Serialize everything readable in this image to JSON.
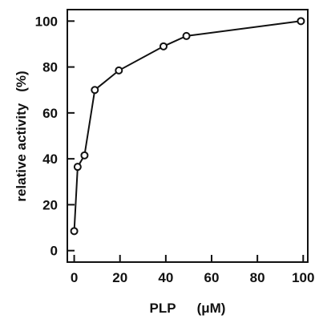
{
  "chart_data": {
    "type": "line",
    "xlabel": "PLP",
    "xunit": "(μM)",
    "ylabel": "relative activity",
    "yunit": "(%)",
    "xlim": [
      -3,
      102
    ],
    "ylim": [
      -5,
      105
    ],
    "xticks": [
      0,
      20,
      40,
      60,
      80,
      100
    ],
    "yticks": [
      0,
      20,
      40,
      60,
      80,
      100
    ],
    "grid": false,
    "markers": "open-circle",
    "series": [
      {
        "x": [
          0,
          1.5,
          4.5,
          9,
          19.5,
          39,
          49,
          99
        ],
        "y": [
          8.5,
          36.5,
          41.5,
          70,
          78.5,
          89,
          93.5,
          100
        ]
      }
    ]
  }
}
